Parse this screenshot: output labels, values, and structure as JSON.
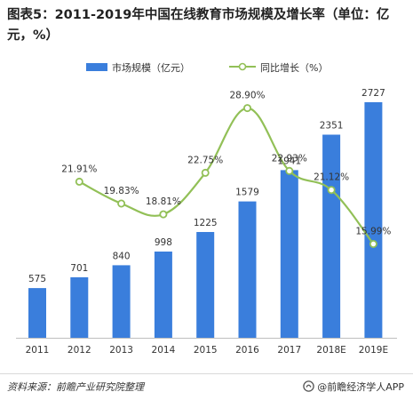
{
  "title": "图表5：2011-2019年中国在线教育市场规模及增长率（单位：亿元，%）",
  "legend": {
    "bar_label": "市场规模（亿元）",
    "line_label": "同比增长（%）"
  },
  "footer": {
    "source": "资料来源：前瞻产业研究院整理",
    "brand": "@前瞻经济学人APP"
  },
  "colors": {
    "bar": "#3a7edc",
    "line": "#92c057",
    "marker_fill": "#ffffff",
    "axis": "#bfbfbf"
  },
  "chart_data": {
    "type": "bar",
    "title": "图表5：2011-2019年中国在线教育市场规模及增长率（单位：亿元，%）",
    "categories": [
      "2011",
      "2012",
      "2013",
      "2014",
      "2015",
      "2016",
      "2017",
      "2018E",
      "2019E"
    ],
    "series": [
      {
        "name": "市场规模（亿元）",
        "type": "bar",
        "values": [
          575,
          701,
          840,
          998,
          1225,
          1579,
          1941,
          2351,
          2727
        ],
        "labels": [
          "575",
          "701",
          "840",
          "998",
          "1225",
          "1579",
          "1941",
          "2351",
          "2727"
        ]
      },
      {
        "name": "同比增长（%）",
        "type": "line",
        "smooth": true,
        "values": [
          null,
          21.91,
          19.83,
          18.81,
          22.75,
          28.9,
          22.93,
          21.12,
          15.99
        ],
        "labels": [
          "",
          "21.91%",
          "19.83%",
          "18.81%",
          "22.75%",
          "28.90%",
          "22.93%",
          "21.12%",
          "15.99%"
        ]
      }
    ],
    "legend_position": "top",
    "grid": false,
    "y_axis_visible": false
  }
}
